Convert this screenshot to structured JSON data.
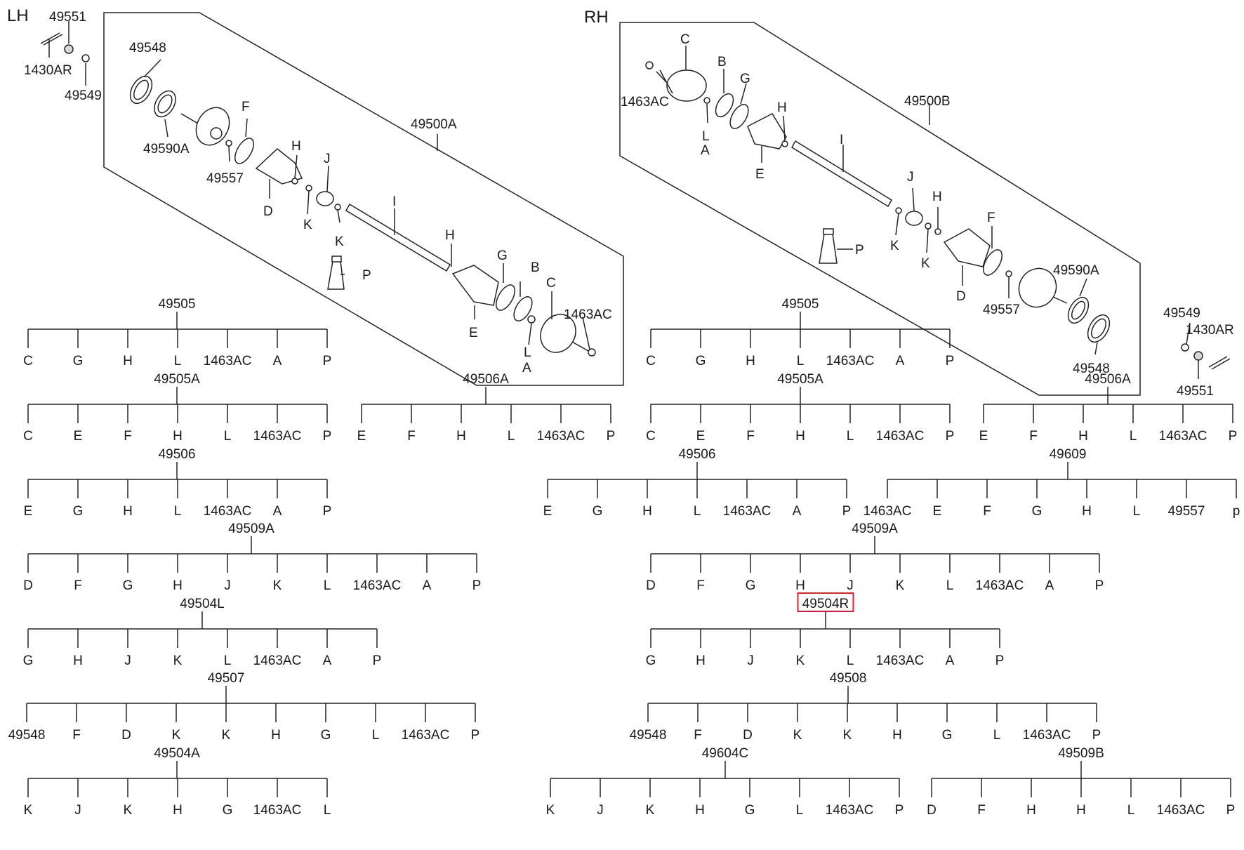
{
  "sides": {
    "left": "LH",
    "right": "RH"
  },
  "left_callouts": [
    {
      "id": "lc1",
      "text": "49551"
    },
    {
      "id": "lc2",
      "text": "1430AR"
    },
    {
      "id": "lc3",
      "text": "49549"
    },
    {
      "id": "lc4",
      "text": "49548"
    },
    {
      "id": "lc5",
      "text": "49590A"
    },
    {
      "id": "lc6",
      "text": "49557"
    },
    {
      "id": "lc7",
      "text": "F"
    },
    {
      "id": "lc8",
      "text": "D"
    },
    {
      "id": "lc9",
      "text": "H"
    },
    {
      "id": "lc10",
      "text": "K"
    },
    {
      "id": "lc11",
      "text": "J"
    },
    {
      "id": "lc12",
      "text": "K"
    },
    {
      "id": "lc13",
      "text": "49500A"
    },
    {
      "id": "lc14",
      "text": "I"
    },
    {
      "id": "lc15",
      "text": "P"
    },
    {
      "id": "lc16",
      "text": "H"
    },
    {
      "id": "lc17",
      "text": "G"
    },
    {
      "id": "lc18",
      "text": "B"
    },
    {
      "id": "lc19",
      "text": "C"
    },
    {
      "id": "lc20",
      "text": "1463AC"
    },
    {
      "id": "lc21",
      "text": "E"
    },
    {
      "id": "lc22",
      "text": "L"
    },
    {
      "id": "lc23",
      "text": "A"
    }
  ],
  "right_callouts": [
    {
      "id": "rc1",
      "text": "C"
    },
    {
      "id": "rc2",
      "text": "1463AC"
    },
    {
      "id": "rc3",
      "text": "B"
    },
    {
      "id": "rc4",
      "text": "G"
    },
    {
      "id": "rc5",
      "text": "L"
    },
    {
      "id": "rc6",
      "text": "A"
    },
    {
      "id": "rc7",
      "text": "H"
    },
    {
      "id": "rc8",
      "text": "E"
    },
    {
      "id": "rc9",
      "text": "49500B"
    },
    {
      "id": "rc10",
      "text": "I"
    },
    {
      "id": "rc11",
      "text": "J"
    },
    {
      "id": "rc12",
      "text": "H"
    },
    {
      "id": "rc13",
      "text": "K"
    },
    {
      "id": "rc14",
      "text": "K"
    },
    {
      "id": "rc15",
      "text": "P"
    },
    {
      "id": "rc16",
      "text": "F"
    },
    {
      "id": "rc17",
      "text": "D"
    },
    {
      "id": "rc18",
      "text": "49557"
    },
    {
      "id": "rc19",
      "text": "49590A"
    },
    {
      "id": "rc20",
      "text": "49548"
    },
    {
      "id": "rc21",
      "text": "49549"
    },
    {
      "id": "rc22",
      "text": "1430AR"
    },
    {
      "id": "rc23",
      "text": "49551"
    }
  ],
  "kits": [
    {
      "id": "L1",
      "code": "49505",
      "highlighted": false,
      "children": [
        "C",
        "G",
        "H",
        "L",
        "1463AC",
        "A",
        "P"
      ]
    },
    {
      "id": "L2",
      "code": "49505A",
      "highlighted": false,
      "children": [
        "C",
        "E",
        "F",
        "H",
        "L",
        "1463AC",
        "P"
      ]
    },
    {
      "id": "L3",
      "code": "49506A",
      "highlighted": false,
      "children": [
        "E",
        "F",
        "H",
        "L",
        "1463AC",
        "P"
      ]
    },
    {
      "id": "L4",
      "code": "49506",
      "highlighted": false,
      "children": [
        "E",
        "G",
        "H",
        "L",
        "1463AC",
        "A",
        "P"
      ]
    },
    {
      "id": "L5",
      "code": "49509A",
      "highlighted": false,
      "children": [
        "D",
        "F",
        "G",
        "H",
        "J",
        "K",
        "L",
        "1463AC",
        "A",
        "P"
      ]
    },
    {
      "id": "L6",
      "code": "49504L",
      "highlighted": false,
      "children": [
        "G",
        "H",
        "J",
        "K",
        "L",
        "1463AC",
        "A",
        "P"
      ]
    },
    {
      "id": "L7",
      "code": "49507",
      "highlighted": false,
      "children": [
        "49548",
        "F",
        "D",
        "K",
        "K",
        "H",
        "G",
        "L",
        "1463AC",
        "P"
      ]
    },
    {
      "id": "L8",
      "code": "49504A",
      "highlighted": false,
      "children": [
        "K",
        "J",
        "K",
        "H",
        "G",
        "1463AC",
        "L"
      ]
    },
    {
      "id": "R1",
      "code": "49505",
      "highlighted": false,
      "children": [
        "C",
        "G",
        "H",
        "L",
        "1463AC",
        "A",
        "P"
      ]
    },
    {
      "id": "R2",
      "code": "49505A",
      "highlighted": false,
      "children": [
        "C",
        "E",
        "F",
        "H",
        "L",
        "1463AC",
        "P"
      ]
    },
    {
      "id": "R3",
      "code": "49506A",
      "highlighted": false,
      "children": [
        "E",
        "F",
        "H",
        "L",
        "1463AC",
        "P"
      ]
    },
    {
      "id": "R4",
      "code": "49506",
      "highlighted": false,
      "children": [
        "E",
        "G",
        "H",
        "L",
        "1463AC",
        "A",
        "P"
      ]
    },
    {
      "id": "R5",
      "code": "49609",
      "highlighted": false,
      "children": [
        "1463AC",
        "E",
        "F",
        "G",
        "H",
        "L",
        "49557",
        "p"
      ]
    },
    {
      "id": "R6",
      "code": "49509A",
      "highlighted": false,
      "children": [
        "D",
        "F",
        "G",
        "H",
        "J",
        "K",
        "L",
        "1463AC",
        "A",
        "P"
      ]
    },
    {
      "id": "R7",
      "code": "49504R",
      "highlighted": true,
      "children": [
        "G",
        "H",
        "J",
        "K",
        "L",
        "1463AC",
        "A",
        "P"
      ]
    },
    {
      "id": "R8",
      "code": "49508",
      "highlighted": false,
      "children": [
        "49548",
        "F",
        "D",
        "K",
        "K",
        "H",
        "G",
        "L",
        "1463AC",
        "P"
      ]
    },
    {
      "id": "R9",
      "code": "49604C",
      "highlighted": false,
      "children": [
        "K",
        "J",
        "K",
        "H",
        "G",
        "L",
        "1463AC",
        "P"
      ]
    },
    {
      "id": "R10",
      "code": "49509B",
      "highlighted": false,
      "children": [
        "D",
        "F",
        "H",
        "H",
        "L",
        "1463AC",
        "P"
      ]
    }
  ],
  "colors": {
    "ink": "#222222",
    "text": "#1a1a1a",
    "highlight": "#e0202a",
    "shade": "#d8d8d8"
  }
}
